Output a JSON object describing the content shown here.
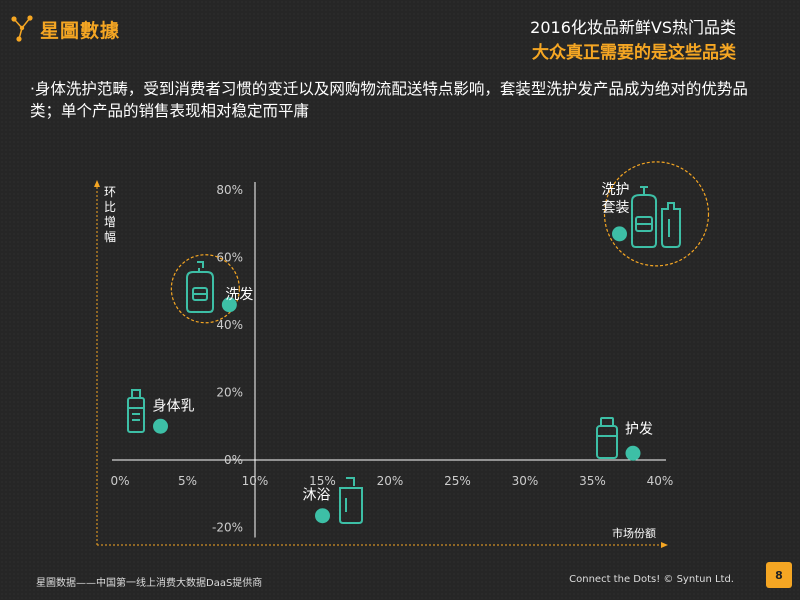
{
  "header": {
    "logo_text": "星圖數據",
    "title": "2016化妆品新鲜VS热门品类",
    "subtitle": "大众真正需要的是这些品类"
  },
  "description": "·身体洗护范畴，受到消费者习惯的变迁以及网购物流配送特点影响，套装型洗护发产品成为绝对的优势品类；单个产品的销售表现相对稳定而平庸",
  "colors": {
    "accent": "#f5a623",
    "point": "#3dbfa6",
    "icon": "#3dbfa6",
    "axis": "#ffffff"
  },
  "chart_data": {
    "type": "scatter",
    "xlabel": "市场份额",
    "ylabel": "环比增幅",
    "xlim": [
      0,
      0.4
    ],
    "ylim": [
      -0.2,
      0.8
    ],
    "x_ticks": [
      "0%",
      "5%",
      "10%",
      "15%",
      "20%",
      "25%",
      "30%",
      "35%",
      "40%"
    ],
    "y_ticks": [
      "80%",
      "60%",
      "40%",
      "20%",
      "0%",
      "-20%"
    ],
    "points": [
      {
        "label": "洗护套装",
        "x": 0.37,
        "y": 0.67,
        "icon": "shampoo-set-icon",
        "highlight": true
      },
      {
        "label": "洗发",
        "x": 0.081,
        "y": 0.46,
        "icon": "shampoo-bottle-icon",
        "highlight": true
      },
      {
        "label": "身体乳",
        "x": 0.03,
        "y": 0.1,
        "icon": "lotion-bottle-icon",
        "highlight": false
      },
      {
        "label": "护发",
        "x": 0.38,
        "y": 0.02,
        "icon": "conditioner-bottle-icon",
        "highlight": false
      },
      {
        "label": "沐浴",
        "x": 0.15,
        "y": -0.165,
        "icon": "shower-gel-icon",
        "highlight": false
      }
    ]
  },
  "footer": {
    "left": "星圖数据——中国第一线上消费大数据DaaS提供商",
    "right": "Connect the Dots! © Syntun Ltd.",
    "page": "8"
  }
}
